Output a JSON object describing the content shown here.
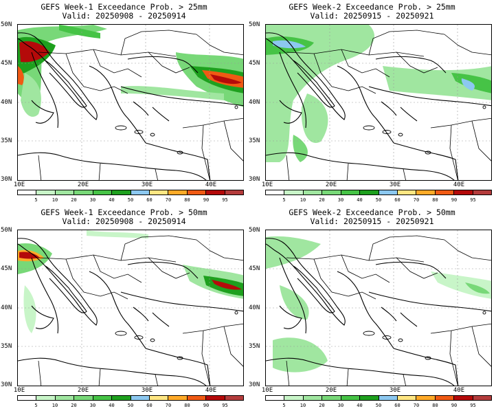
{
  "panels": [
    {
      "title_line1": "GEFS Week-1 Exceedance Prob. > 25mm",
      "title_line2": "Valid: 20250908 - 20250914"
    },
    {
      "title_line1": "GEFS Week-2 Exceedance Prob. > 25mm",
      "title_line2": "Valid: 20250915 - 20250921"
    },
    {
      "title_line1": "GEFS Week-1 Exceedance Prob. > 50mm",
      "title_line2": "Valid: 20250908 - 20250914"
    },
    {
      "title_line1": "GEFS Week-2 Exceedance Prob. > 50mm",
      "title_line2": "Valid: 20250915 - 20250921"
    }
  ],
  "axes": {
    "lat_labels": [
      "50N",
      "45N",
      "40N",
      "35N",
      "30N"
    ],
    "lon_labels": [
      "10E",
      "20E",
      "30E",
      "40E"
    ]
  },
  "colorbar": {
    "labels": [
      "5",
      "10",
      "20",
      "30",
      "40",
      "50",
      "60",
      "70",
      "80",
      "90",
      "95"
    ],
    "colors": [
      "#ffffff",
      "#c8f5c8",
      "#a0e6a0",
      "#78d878",
      "#46c346",
      "#1ea01e",
      "#8cc8f0",
      "#ffe682",
      "#ffaa28",
      "#f05a14",
      "#b40a0a",
      "#b43c3c"
    ]
  }
}
